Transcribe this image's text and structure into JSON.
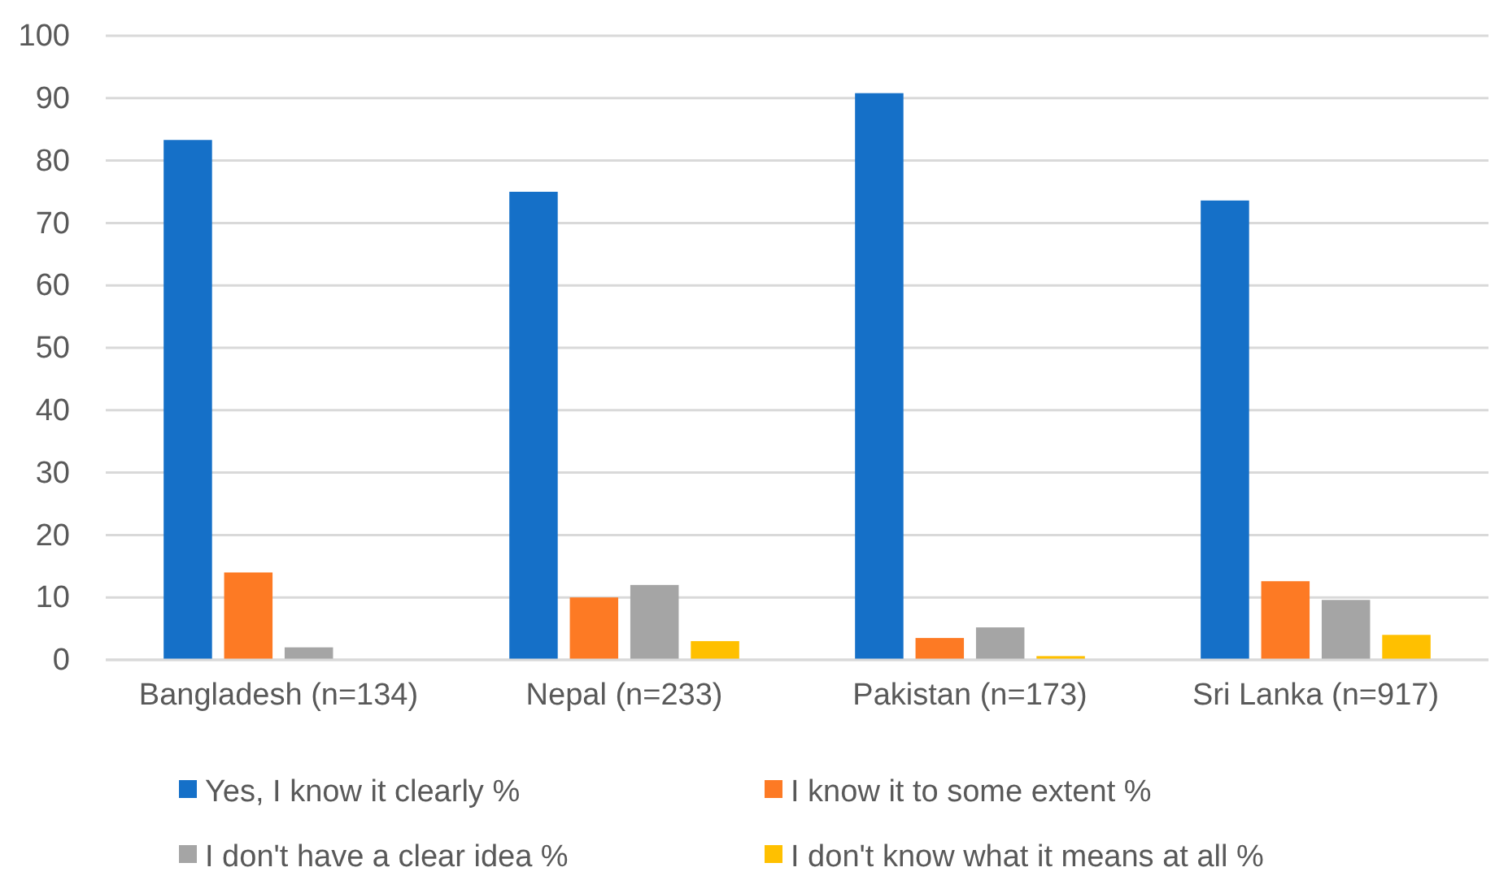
{
  "chart_data": {
    "type": "bar",
    "categories": [
      "Bangladesh (n=134)",
      "Nepal (n=233)",
      "Pakistan (n=173)",
      "Sri Lanka (n=917)"
    ],
    "series": [
      {
        "name": "Yes, I know it clearly %",
        "color": "#1570c8",
        "values": [
          83.3,
          75,
          90.8,
          73.6
        ]
      },
      {
        "name": "I know it to some extent %",
        "color": "#fd7a24",
        "values": [
          14,
          10,
          3.5,
          12.6
        ]
      },
      {
        "name": "I don't have a clear idea %",
        "color": "#a5a5a5",
        "values": [
          2,
          12,
          5.2,
          9.6
        ]
      },
      {
        "name": "I don't know what it means at all %",
        "color": "#ffc000",
        "values": [
          0,
          3,
          0.6,
          4
        ]
      }
    ],
    "ylim": [
      0,
      100
    ],
    "yticks": [
      0,
      10,
      20,
      30,
      40,
      50,
      60,
      70,
      80,
      90,
      100
    ],
    "grid": "y",
    "legend": "bottom"
  }
}
